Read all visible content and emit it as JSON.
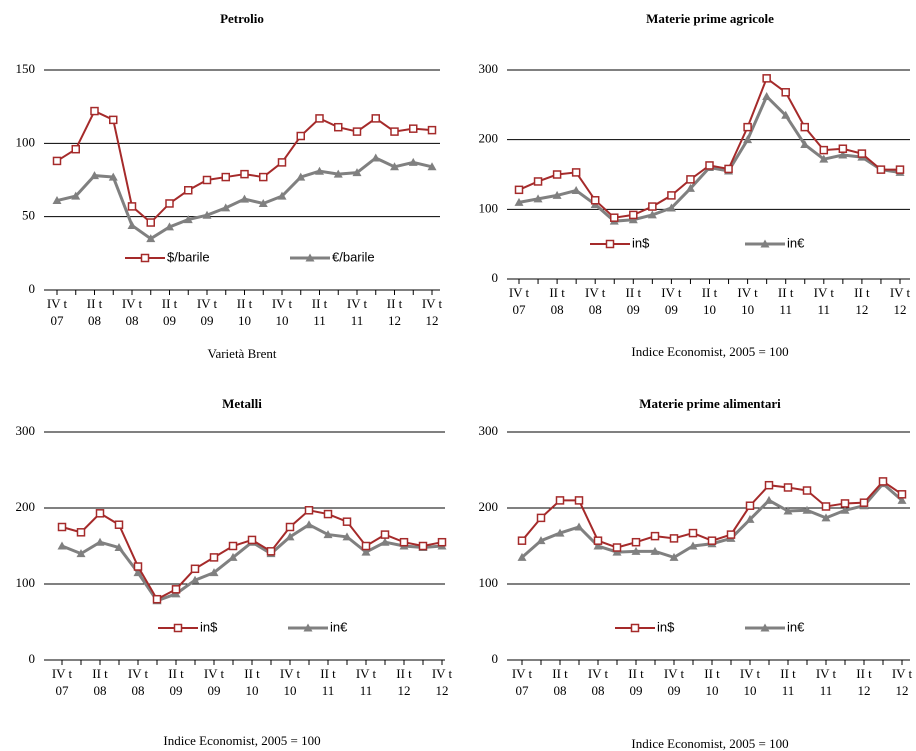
{
  "chart_data": [
    {
      "type": "line",
      "title": "Petrolio",
      "x_label": "Varietà Brent",
      "categories": [
        "IV t\n07",
        null,
        "II t\n08",
        null,
        "IV t\n08",
        null,
        "II t\n09",
        null,
        "IV t\n09",
        null,
        "II t\n10",
        null,
        "IV t\n10",
        null,
        "II t\n11",
        null,
        "IV t\n11",
        null,
        "II t\n12",
        null,
        "IV t\n12"
      ],
      "series": [
        {
          "name": "$/barile",
          "color": "#a52a2a",
          "marker": "square",
          "values": [
            88,
            96,
            122,
            116,
            57,
            46,
            59,
            68,
            75,
            77,
            79,
            77,
            87,
            105,
            117,
            111,
            108,
            117,
            108,
            110,
            109
          ]
        },
        {
          "name": "€/barile",
          "color": "#808080",
          "marker": "triangle",
          "values": [
            61,
            64,
            78,
            77,
            44,
            35,
            43,
            48,
            51,
            56,
            62,
            59,
            64,
            77,
            81,
            79,
            80,
            90,
            84,
            87,
            84
          ]
        }
      ],
      "ylim": [
        0,
        150
      ],
      "yticks": [
        0,
        50,
        100,
        150
      ],
      "grid": true
    },
    {
      "type": "line",
      "title": "Materie prime agricole",
      "x_label": "Indice Economist, 2005 = 100",
      "categories": [
        "IV t\n07",
        null,
        "II t\n08",
        null,
        "IV t\n08",
        null,
        "II t\n09",
        null,
        "IV t\n09",
        null,
        "II t\n10",
        null,
        "IV t\n10",
        null,
        "II t\n11",
        null,
        "IV t\n11",
        null,
        "II t\n12",
        null,
        "IV t\n12"
      ],
      "series": [
        {
          "name": "in$",
          "color": "#a52a2a",
          "marker": "square",
          "values": [
            128,
            140,
            150,
            153,
            113,
            88,
            92,
            104,
            120,
            143,
            163,
            158,
            218,
            288,
            268,
            218,
            185,
            187,
            180,
            157,
            157
          ]
        },
        {
          "name": "in€",
          "color": "#808080",
          "marker": "triangle",
          "values": [
            110,
            115,
            120,
            127,
            107,
            83,
            85,
            92,
            102,
            130,
            160,
            155,
            200,
            262,
            235,
            193,
            172,
            178,
            175,
            157,
            153
          ]
        }
      ],
      "ylim": [
        0,
        300
      ],
      "yticks": [
        0,
        100,
        200,
        300
      ],
      "grid": true
    },
    {
      "type": "line",
      "title": "Metalli",
      "x_label": "Indice Economist, 2005 = 100",
      "categories": [
        "IV t\n07",
        null,
        "II t\n08",
        null,
        "IV t\n08",
        null,
        "II t\n09",
        null,
        "IV t\n09",
        null,
        "II t\n10",
        null,
        "IV t\n10",
        null,
        "II t\n11",
        null,
        "IV t\n11",
        null,
        "II t\n12",
        null,
        "IV t\n12"
      ],
      "series": [
        {
          "name": "in$",
          "color": "#a52a2a",
          "marker": "square",
          "values": [
            175,
            168,
            193,
            178,
            123,
            80,
            93,
            120,
            135,
            150,
            158,
            143,
            175,
            197,
            192,
            182,
            150,
            165,
            155,
            150,
            155
          ]
        },
        {
          "name": "in€",
          "color": "#808080",
          "marker": "triangle",
          "values": [
            150,
            140,
            155,
            148,
            115,
            78,
            87,
            105,
            115,
            135,
            155,
            140,
            162,
            178,
            165,
            162,
            142,
            155,
            150,
            148,
            150
          ]
        }
      ],
      "ylim": [
        0,
        300
      ],
      "yticks": [
        0,
        100,
        200,
        300
      ],
      "grid": true
    },
    {
      "type": "line",
      "title": "Materie prime alimentari",
      "x_label": "Indice Economist, 2005 = 100",
      "categories": [
        "IV t\n07",
        null,
        "II t\n08",
        null,
        "IV t\n08",
        null,
        "II t\n09",
        null,
        "IV t\n09",
        null,
        "II t\n10",
        null,
        "IV t\n10",
        null,
        "II t\n11",
        null,
        "IV t\n11",
        null,
        "II t\n12",
        null,
        "IV t\n12"
      ],
      "series": [
        {
          "name": "in$",
          "color": "#a52a2a",
          "marker": "square",
          "values": [
            157,
            187,
            210,
            210,
            157,
            148,
            155,
            163,
            160,
            167,
            157,
            165,
            203,
            230,
            227,
            223,
            202,
            206,
            207,
            235,
            218
          ]
        },
        {
          "name": "in€",
          "color": "#808080",
          "marker": "triangle",
          "values": [
            135,
            157,
            167,
            175,
            150,
            142,
            143,
            143,
            135,
            150,
            153,
            160,
            185,
            210,
            196,
            197,
            187,
            197,
            203,
            232,
            210
          ]
        }
      ],
      "ylim": [
        0,
        300
      ],
      "yticks": [
        0,
        100,
        200,
        300
      ],
      "grid": true
    }
  ]
}
